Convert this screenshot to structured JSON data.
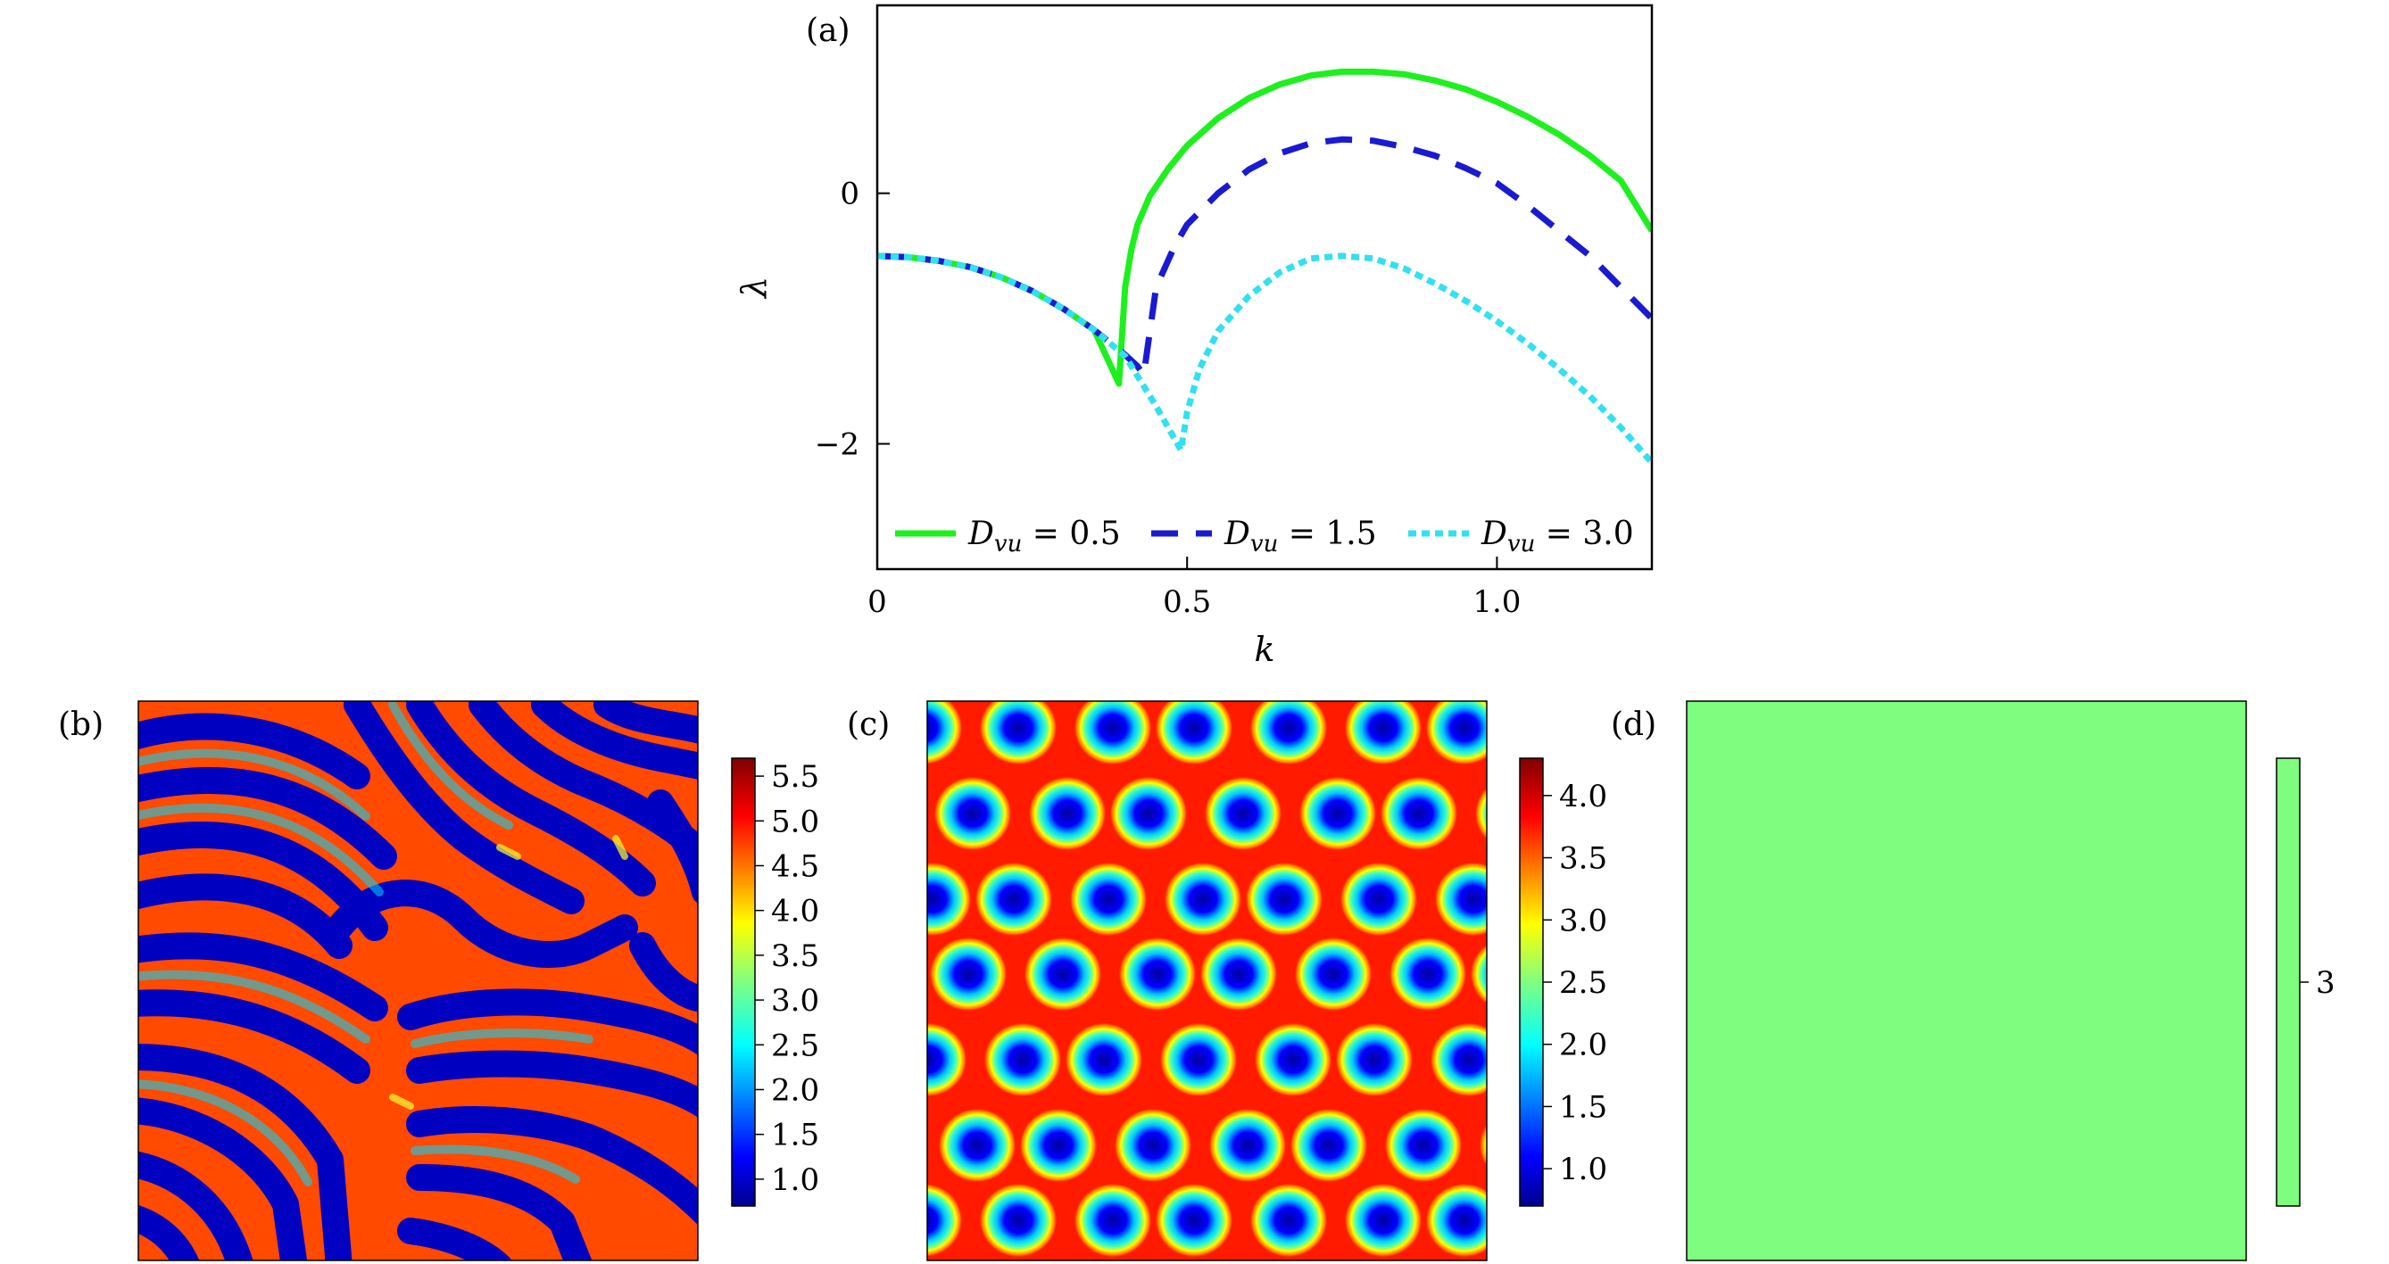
{
  "panels": {
    "a": "(a)",
    "b": "(b)",
    "c": "(c)",
    "d": "(d)"
  },
  "chart_data": [
    {
      "type": "line",
      "panel": "(a)",
      "xlabel": "k",
      "ylabel": "λ",
      "xlim": [
        0,
        1.25
      ],
      "ylim": [
        -3.0,
        1.5
      ],
      "xticks": [
        0,
        0.5,
        1.0
      ],
      "xtick_labels": [
        "0",
        "0.5",
        "1.0"
      ],
      "yticks": [
        0,
        -2
      ],
      "ytick_labels": [
        "0",
        "−2"
      ],
      "legend_position": "bottom",
      "series": [
        {
          "name": "D_vu = 0.5",
          "legend_main": "D",
          "legend_sub": "vu",
          "legend_value": " = 0.5",
          "color": "#1ef01e",
          "style": "solid",
          "x": [
            0,
            0.05,
            0.1,
            0.15,
            0.2,
            0.25,
            0.3,
            0.35,
            0.39,
            0.4,
            0.41,
            0.42,
            0.44,
            0.47,
            0.5,
            0.55,
            0.6,
            0.65,
            0.7,
            0.75,
            0.8,
            0.85,
            0.9,
            0.95,
            1.0,
            1.05,
            1.1,
            1.15,
            1.2,
            1.25
          ],
          "y": [
            -0.5,
            -0.51,
            -0.54,
            -0.59,
            -0.67,
            -0.78,
            -0.92,
            -1.09,
            -1.52,
            -0.75,
            -0.45,
            -0.25,
            -0.02,
            0.2,
            0.38,
            0.6,
            0.76,
            0.87,
            0.94,
            0.97,
            0.97,
            0.95,
            0.9,
            0.83,
            0.73,
            0.61,
            0.47,
            0.3,
            0.1,
            -0.3
          ]
        },
        {
          "name": "D_vu = 1.5",
          "legend_main": "D",
          "legend_sub": "vu",
          "legend_value": " = 1.5",
          "color": "#1a1ad2",
          "style": "dashed",
          "x": [
            0,
            0.05,
            0.1,
            0.15,
            0.2,
            0.25,
            0.3,
            0.35,
            0.4,
            0.42,
            0.43,
            0.45,
            0.48,
            0.5,
            0.55,
            0.6,
            0.65,
            0.7,
            0.75,
            0.8,
            0.85,
            0.9,
            0.95,
            1.0,
            1.05,
            1.1,
            1.15,
            1.2,
            1.25
          ],
          "y": [
            -0.5,
            -0.51,
            -0.54,
            -0.59,
            -0.67,
            -0.78,
            -0.92,
            -1.09,
            -1.29,
            -1.38,
            -1.45,
            -0.75,
            -0.42,
            -0.25,
            0.0,
            0.19,
            0.32,
            0.4,
            0.43,
            0.42,
            0.37,
            0.3,
            0.2,
            0.08,
            -0.1,
            -0.3,
            -0.5,
            -0.75,
            -1.0
          ]
        },
        {
          "name": "D_vu = 3.0",
          "legend_main": "D",
          "legend_sub": "vu",
          "legend_value": " = 3.0",
          "color": "#33e0f0",
          "style": "dotted",
          "x": [
            0,
            0.05,
            0.1,
            0.15,
            0.2,
            0.25,
            0.3,
            0.35,
            0.4,
            0.45,
            0.49,
            0.5,
            0.52,
            0.55,
            0.6,
            0.65,
            0.7,
            0.75,
            0.8,
            0.85,
            0.9,
            0.95,
            1.0,
            1.05,
            1.1,
            1.15,
            1.2,
            1.25
          ],
          "y": [
            -0.5,
            -0.51,
            -0.54,
            -0.59,
            -0.67,
            -0.78,
            -0.92,
            -1.09,
            -1.3,
            -1.7,
            -2.05,
            -1.75,
            -1.4,
            -1.1,
            -0.82,
            -0.63,
            -0.52,
            -0.5,
            -0.52,
            -0.6,
            -0.72,
            -0.86,
            -1.02,
            -1.2,
            -1.4,
            -1.62,
            -1.87,
            -2.15
          ]
        }
      ]
    },
    {
      "type": "heatmap",
      "panel": "(b)",
      "pattern": "stripes",
      "colormap": "jet",
      "colorbar_range": [
        0.7,
        5.7
      ],
      "colorbar_ticks": [
        "5.5",
        "5.0",
        "4.5",
        "4.0",
        "3.5",
        "3.0",
        "2.5",
        "2.0",
        "1.5",
        "1.0"
      ]
    },
    {
      "type": "heatmap",
      "panel": "(c)",
      "pattern": "spots",
      "colormap": "jet",
      "colorbar_range": [
        0.7,
        4.3
      ],
      "colorbar_ticks": [
        "4.0",
        "3.5",
        "3.0",
        "2.5",
        "2.0",
        "1.5",
        "1.0"
      ]
    },
    {
      "type": "heatmap",
      "panel": "(d)",
      "pattern": "uniform",
      "fill_color": "#7ffd7f",
      "colorbar_ticks": [
        "3"
      ]
    }
  ]
}
